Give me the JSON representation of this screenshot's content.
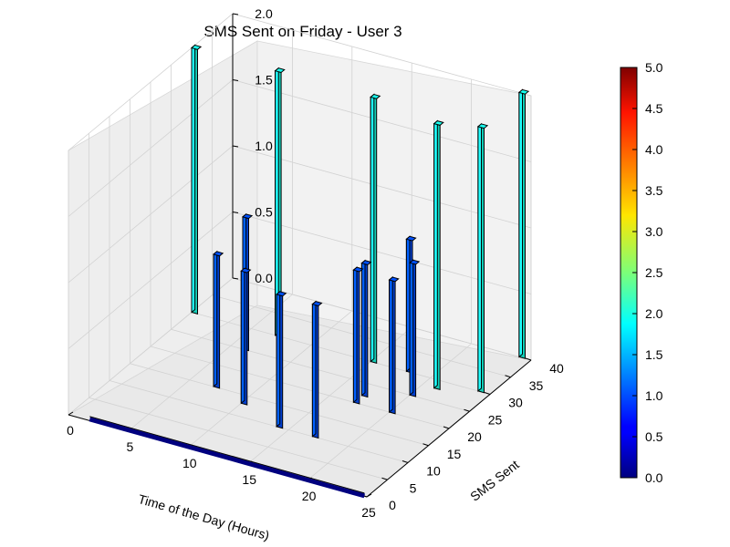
{
  "chart_data": {
    "type": "bar3d",
    "title": "SMS Sent on Friday - User 3",
    "xlabel": "Time of the Day (Hours)",
    "ylabel": "SMS Sent",
    "zlabel": "",
    "xlim": [
      0,
      25
    ],
    "ylim": [
      0,
      40
    ],
    "zlim": [
      0,
      2
    ],
    "xticks": [
      "0",
      "5",
      "10",
      "15",
      "20",
      "25"
    ],
    "yticks": [
      "0",
      "5",
      "10",
      "15",
      "20",
      "25",
      "30",
      "35",
      "40"
    ],
    "zticks": [
      "0.0",
      "0.5",
      "1.0",
      "1.5",
      "2.0"
    ],
    "colorbar": {
      "min": 0,
      "max": 5,
      "ticks": [
        "0.0",
        "0.5",
        "1.0",
        "1.5",
        "2.0",
        "2.5",
        "3.0",
        "3.5",
        "4.0",
        "4.5",
        "5.0"
      ],
      "colormap": "jet"
    },
    "grid": true,
    "bars": [
      {
        "x": 0,
        "y": 30,
        "z": 2
      },
      {
        "x": 7,
        "y": 30,
        "z": 2
      },
      {
        "x": 6,
        "y": 25,
        "z": 1
      },
      {
        "x": 7,
        "y": 15,
        "z": 1
      },
      {
        "x": 10,
        "y": 13,
        "z": 1
      },
      {
        "x": 14,
        "y": 10,
        "z": 1
      },
      {
        "x": 17,
        "y": 10,
        "z": 1
      },
      {
        "x": 15,
        "y": 30,
        "z": 2
      },
      {
        "x": 18,
        "y": 30,
        "z": 1
      },
      {
        "x": 17,
        "y": 20,
        "z": 1
      },
      {
        "x": 17,
        "y": 22,
        "z": 1
      },
      {
        "x": 20,
        "y": 20,
        "z": 1
      },
      {
        "x": 21,
        "y": 28,
        "z": 2
      },
      {
        "x": 20,
        "y": 25,
        "z": 1
      },
      {
        "x": 24,
        "y": 30,
        "z": 2
      },
      {
        "x": 24,
        "y": 40,
        "z": 2
      }
    ]
  }
}
